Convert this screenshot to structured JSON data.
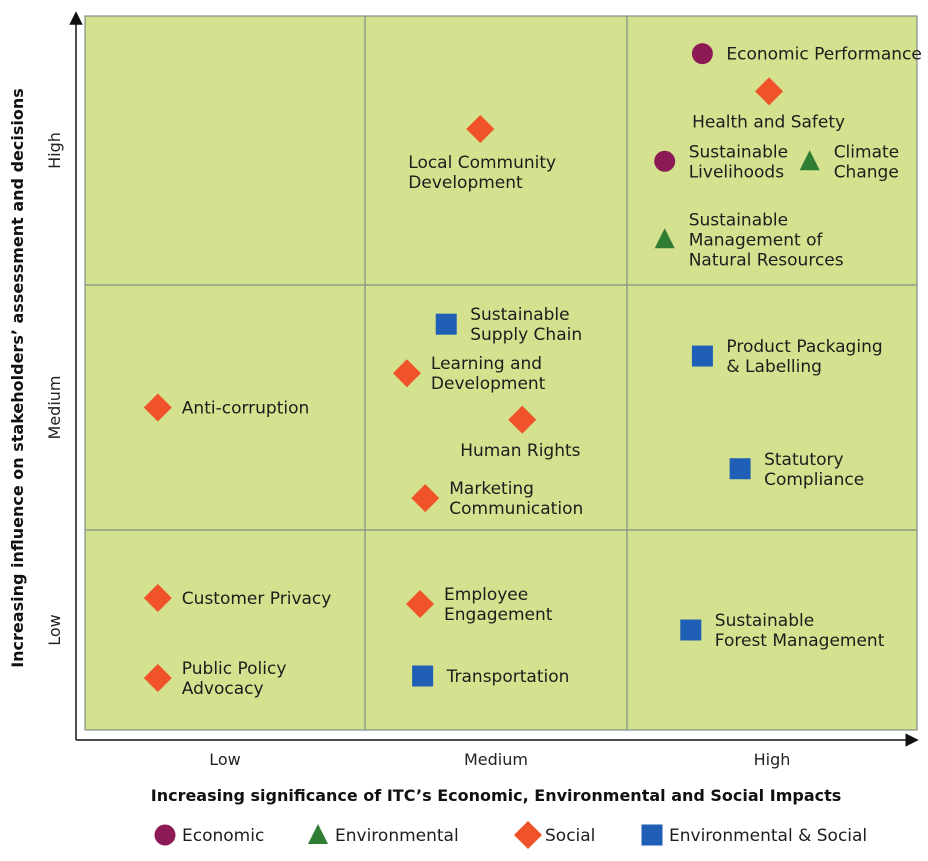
{
  "colors": {
    "panel": "#d4e18e",
    "grid": "#7f8f8a",
    "economic": "#8c1a55",
    "environmental": "#2e7d32",
    "social": "#f0522a",
    "env_social": "#1f5fb5"
  },
  "chart_data": {
    "type": "scatter",
    "title": "",
    "xlabel": "Increasing significance of ITC’s Economic, Environmental and Social Impacts",
    "ylabel": "Increasing influence on stakeholders’ assessment and decisions",
    "x_categories": [
      "Low",
      "Medium",
      "High"
    ],
    "y_categories": [
      "Low",
      "Medium",
      "High"
    ],
    "grid": true,
    "legend_position": "bottom",
    "categories": [
      {
        "key": "economic",
        "name": "Economic",
        "marker": "circle"
      },
      {
        "key": "environmental",
        "name": "Environmental",
        "marker": "triangle"
      },
      {
        "key": "social",
        "name": "Social",
        "marker": "diamond"
      },
      {
        "key": "env_social",
        "name": "Environmental  & Social",
        "marker": "square"
      }
    ],
    "points": [
      {
        "label": [
          "Economic Performance"
        ],
        "category": "economic",
        "x": 2.26,
        "y": 2.86
      },
      {
        "label": [
          "Health and Safety"
        ],
        "category": "social",
        "x": 2.49,
        "y": 2.72
      },
      {
        "label": [
          "Sustainable",
          "Livelihoods"
        ],
        "category": "economic",
        "x": 2.13,
        "y": 2.46
      },
      {
        "label": [
          "Climate",
          "Change"
        ],
        "category": "environmental",
        "x": 2.63,
        "y": 2.46
      },
      {
        "label": [
          "Sustainable",
          "Management of",
          "Natural Resources"
        ],
        "category": "environmental",
        "x": 2.13,
        "y": 2.17
      },
      {
        "label": [
          "Local Community",
          "Development"
        ],
        "category": "social",
        "x": 1.44,
        "y": 2.58
      },
      {
        "label": [
          "Sustainable",
          "Supply Chain"
        ],
        "category": "env_social",
        "x": 1.31,
        "y": 1.84
      },
      {
        "label": [
          "Learning and",
          "Development"
        ],
        "category": "social",
        "x": 1.16,
        "y": 1.64
      },
      {
        "label": [
          "Human Rights"
        ],
        "category": "social",
        "x": 1.6,
        "y": 1.45
      },
      {
        "label": [
          "Marketing",
          "Communication"
        ],
        "category": "social",
        "x": 1.23,
        "y": 1.13
      },
      {
        "label": [
          "Product Packaging",
          "& Labelling"
        ],
        "category": "env_social",
        "x": 2.26,
        "y": 1.71
      },
      {
        "label": [
          "Statutory",
          "Compliance"
        ],
        "category": "env_social",
        "x": 2.39,
        "y": 1.25
      },
      {
        "label": [
          "Anti-corruption"
        ],
        "category": "social",
        "x": 0.26,
        "y": 1.5
      },
      {
        "label": [
          "Customer Privacy"
        ],
        "category": "social",
        "x": 0.26,
        "y": 0.66
      },
      {
        "label": [
          "Public Policy",
          "Advocacy"
        ],
        "category": "social",
        "x": 0.26,
        "y": 0.26
      },
      {
        "label": [
          "Employee",
          "Engagement"
        ],
        "category": "social",
        "x": 1.21,
        "y": 0.63
      },
      {
        "label": [
          "Transportation"
        ],
        "category": "env_social",
        "x": 1.22,
        "y": 0.27
      },
      {
        "label": [
          "Sustainable",
          "Forest Management"
        ],
        "category": "env_social",
        "x": 2.22,
        "y": 0.5
      }
    ]
  }
}
